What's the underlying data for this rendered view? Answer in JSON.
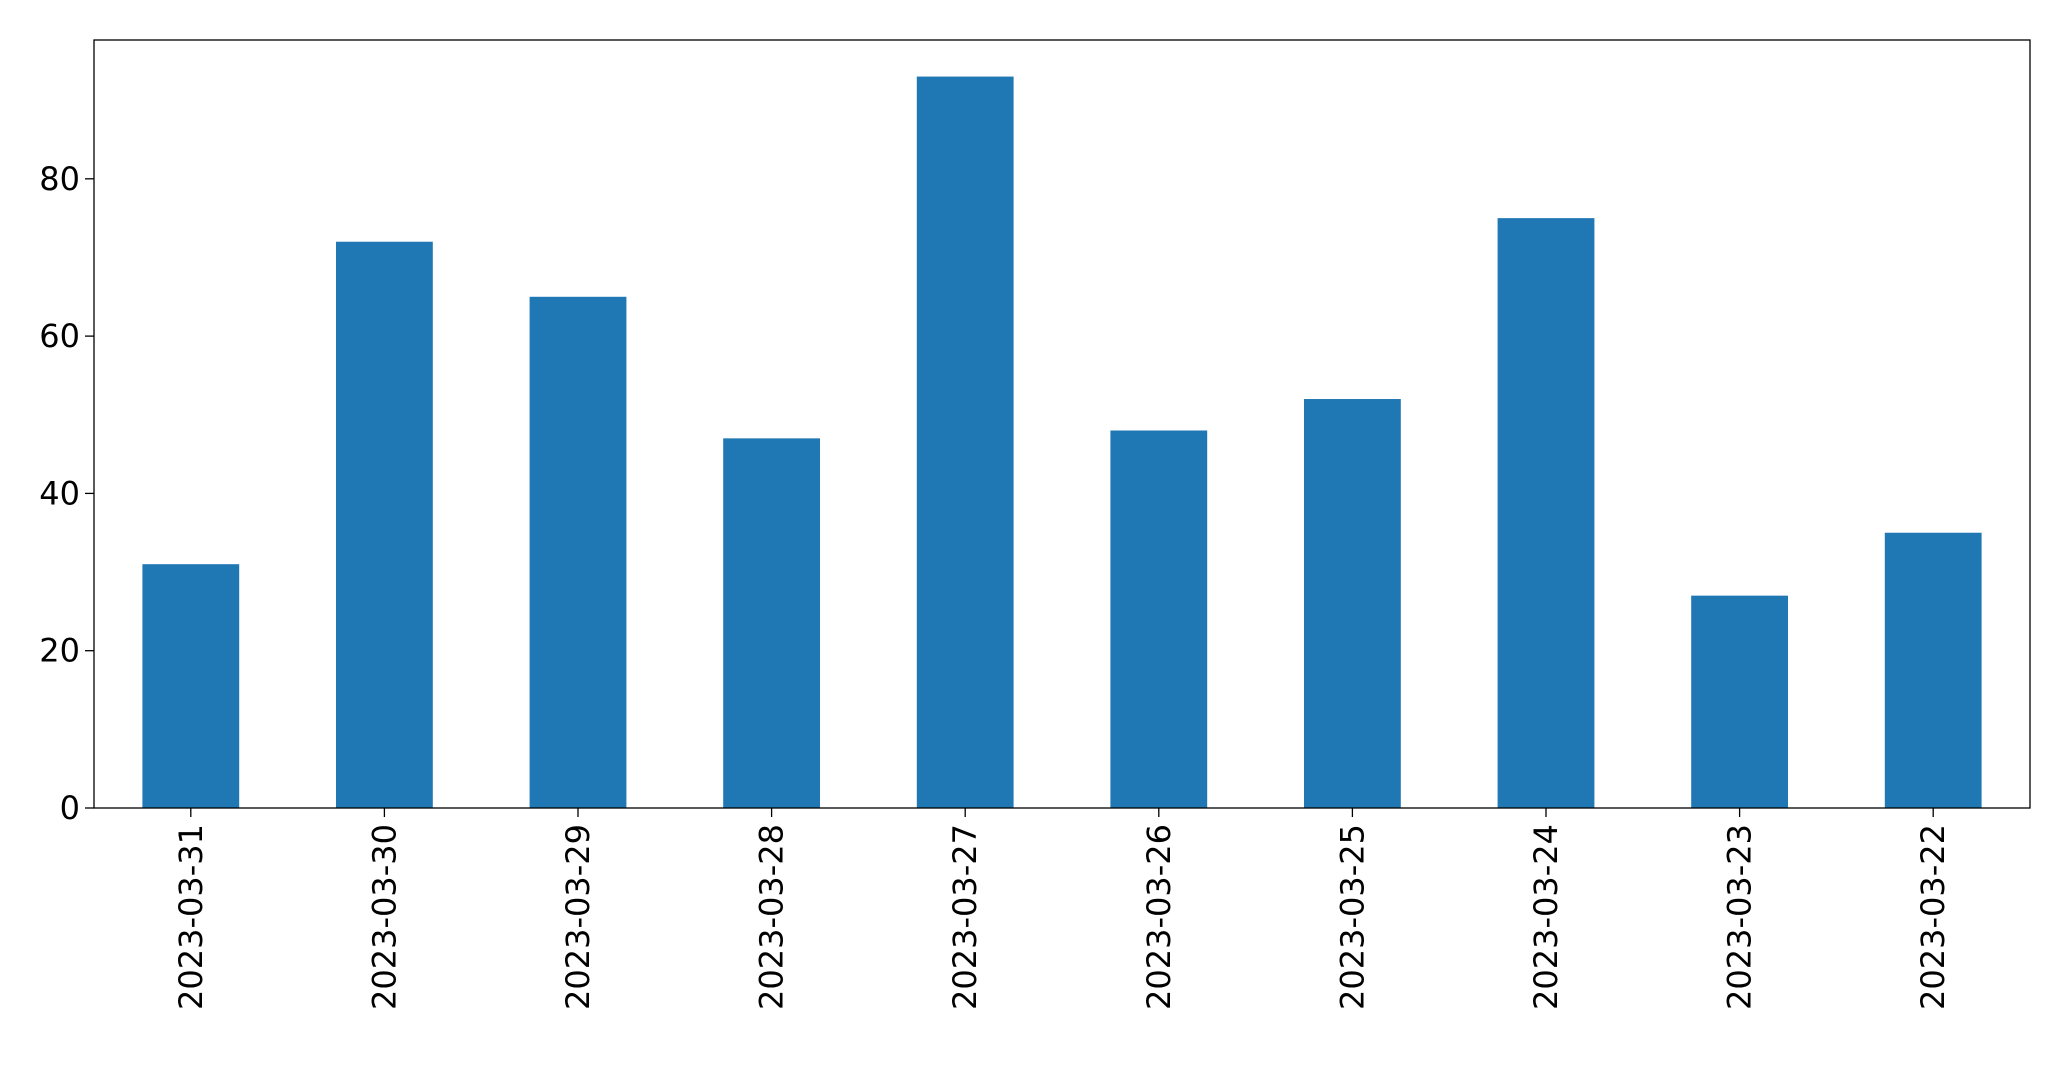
{
  "chart_data": {
    "type": "bar",
    "categories": [
      "2023-03-31",
      "2023-03-30",
      "2023-03-29",
      "2023-03-28",
      "2023-03-27",
      "2023-03-26",
      "2023-03-25",
      "2023-03-24",
      "2023-03-23",
      "2023-03-22"
    ],
    "values": [
      31,
      72,
      65,
      47,
      93,
      48,
      52,
      75,
      27,
      35
    ],
    "color": "#1f77b4",
    "ylim": [
      0,
      97.65
    ],
    "yticks": [
      0,
      20,
      40,
      60,
      80
    ],
    "grid": false
  }
}
